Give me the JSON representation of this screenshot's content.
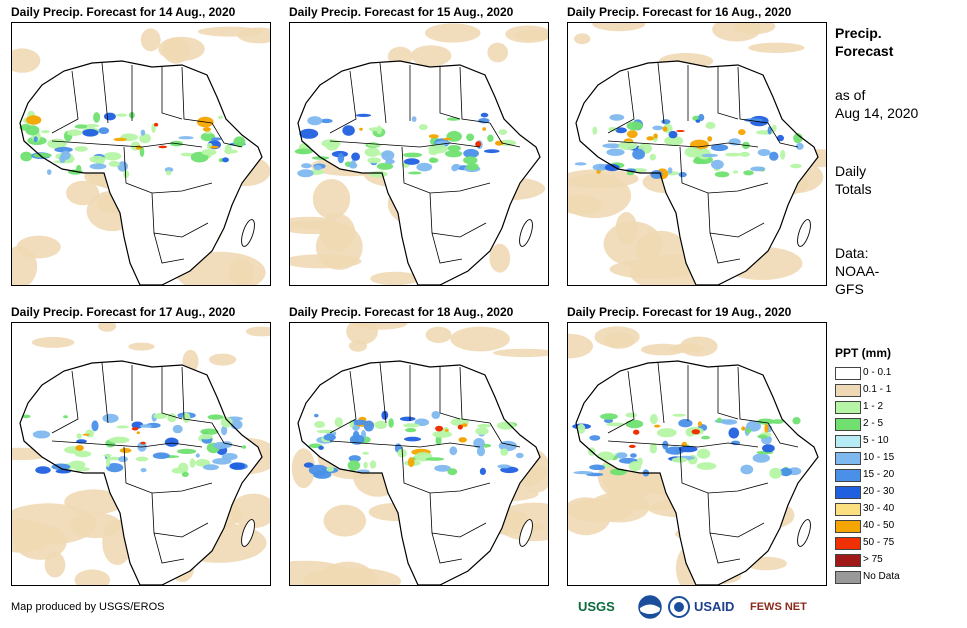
{
  "panels": [
    {
      "title": "Daily Precip. Forecast for 14 Aug., 2020"
    },
    {
      "title": "Daily Precip. Forecast for 15 Aug., 2020"
    },
    {
      "title": "Daily Precip. Forecast for 16 Aug., 2020"
    },
    {
      "title": "Daily Precip. Forecast for 17 Aug., 2020"
    },
    {
      "title": "Daily Precip. Forecast for 18 Aug., 2020"
    },
    {
      "title": "Daily Precip. Forecast for 19 Aug., 2020"
    }
  ],
  "sidebar": {
    "title_line1": "Precip.",
    "title_line2": "Forecast",
    "asof_line1": "as of",
    "asof_line2": "Aug 14, 2020",
    "totals_line1": "Daily",
    "totals_line2": "Totals",
    "data_line1": "Data:",
    "data_line2": "NOAA-",
    "data_line3": "GFS"
  },
  "legend": {
    "title": "PPT (mm)",
    "items": [
      {
        "label": "0 - 0.1",
        "color": "#ffffff"
      },
      {
        "label": "0.1 - 1",
        "color": "#efd9b4"
      },
      {
        "label": "1 - 2",
        "color": "#b5f5a5"
      },
      {
        "label": "2 - 5",
        "color": "#70e070"
      },
      {
        "label": "5 - 10",
        "color": "#b8ecf5"
      },
      {
        "label": "10 - 15",
        "color": "#7fb8ef"
      },
      {
        "label": "15 - 20",
        "color": "#4a90e8"
      },
      {
        "label": "20 - 30",
        "color": "#2060e0"
      },
      {
        "label": "30 - 40",
        "color": "#fae080"
      },
      {
        "label": "40 - 50",
        "color": "#f5a500"
      },
      {
        "label": "50 - 75",
        "color": "#f03000"
      },
      {
        "label": "> 75",
        "color": "#a01818"
      },
      {
        "label": "No Data",
        "color": "#999999"
      }
    ]
  },
  "footer": {
    "credit": "Map produced by USGS/EROS",
    "logos": [
      "USGS",
      "NOAA",
      "USAID",
      "FEWS NET"
    ]
  }
}
